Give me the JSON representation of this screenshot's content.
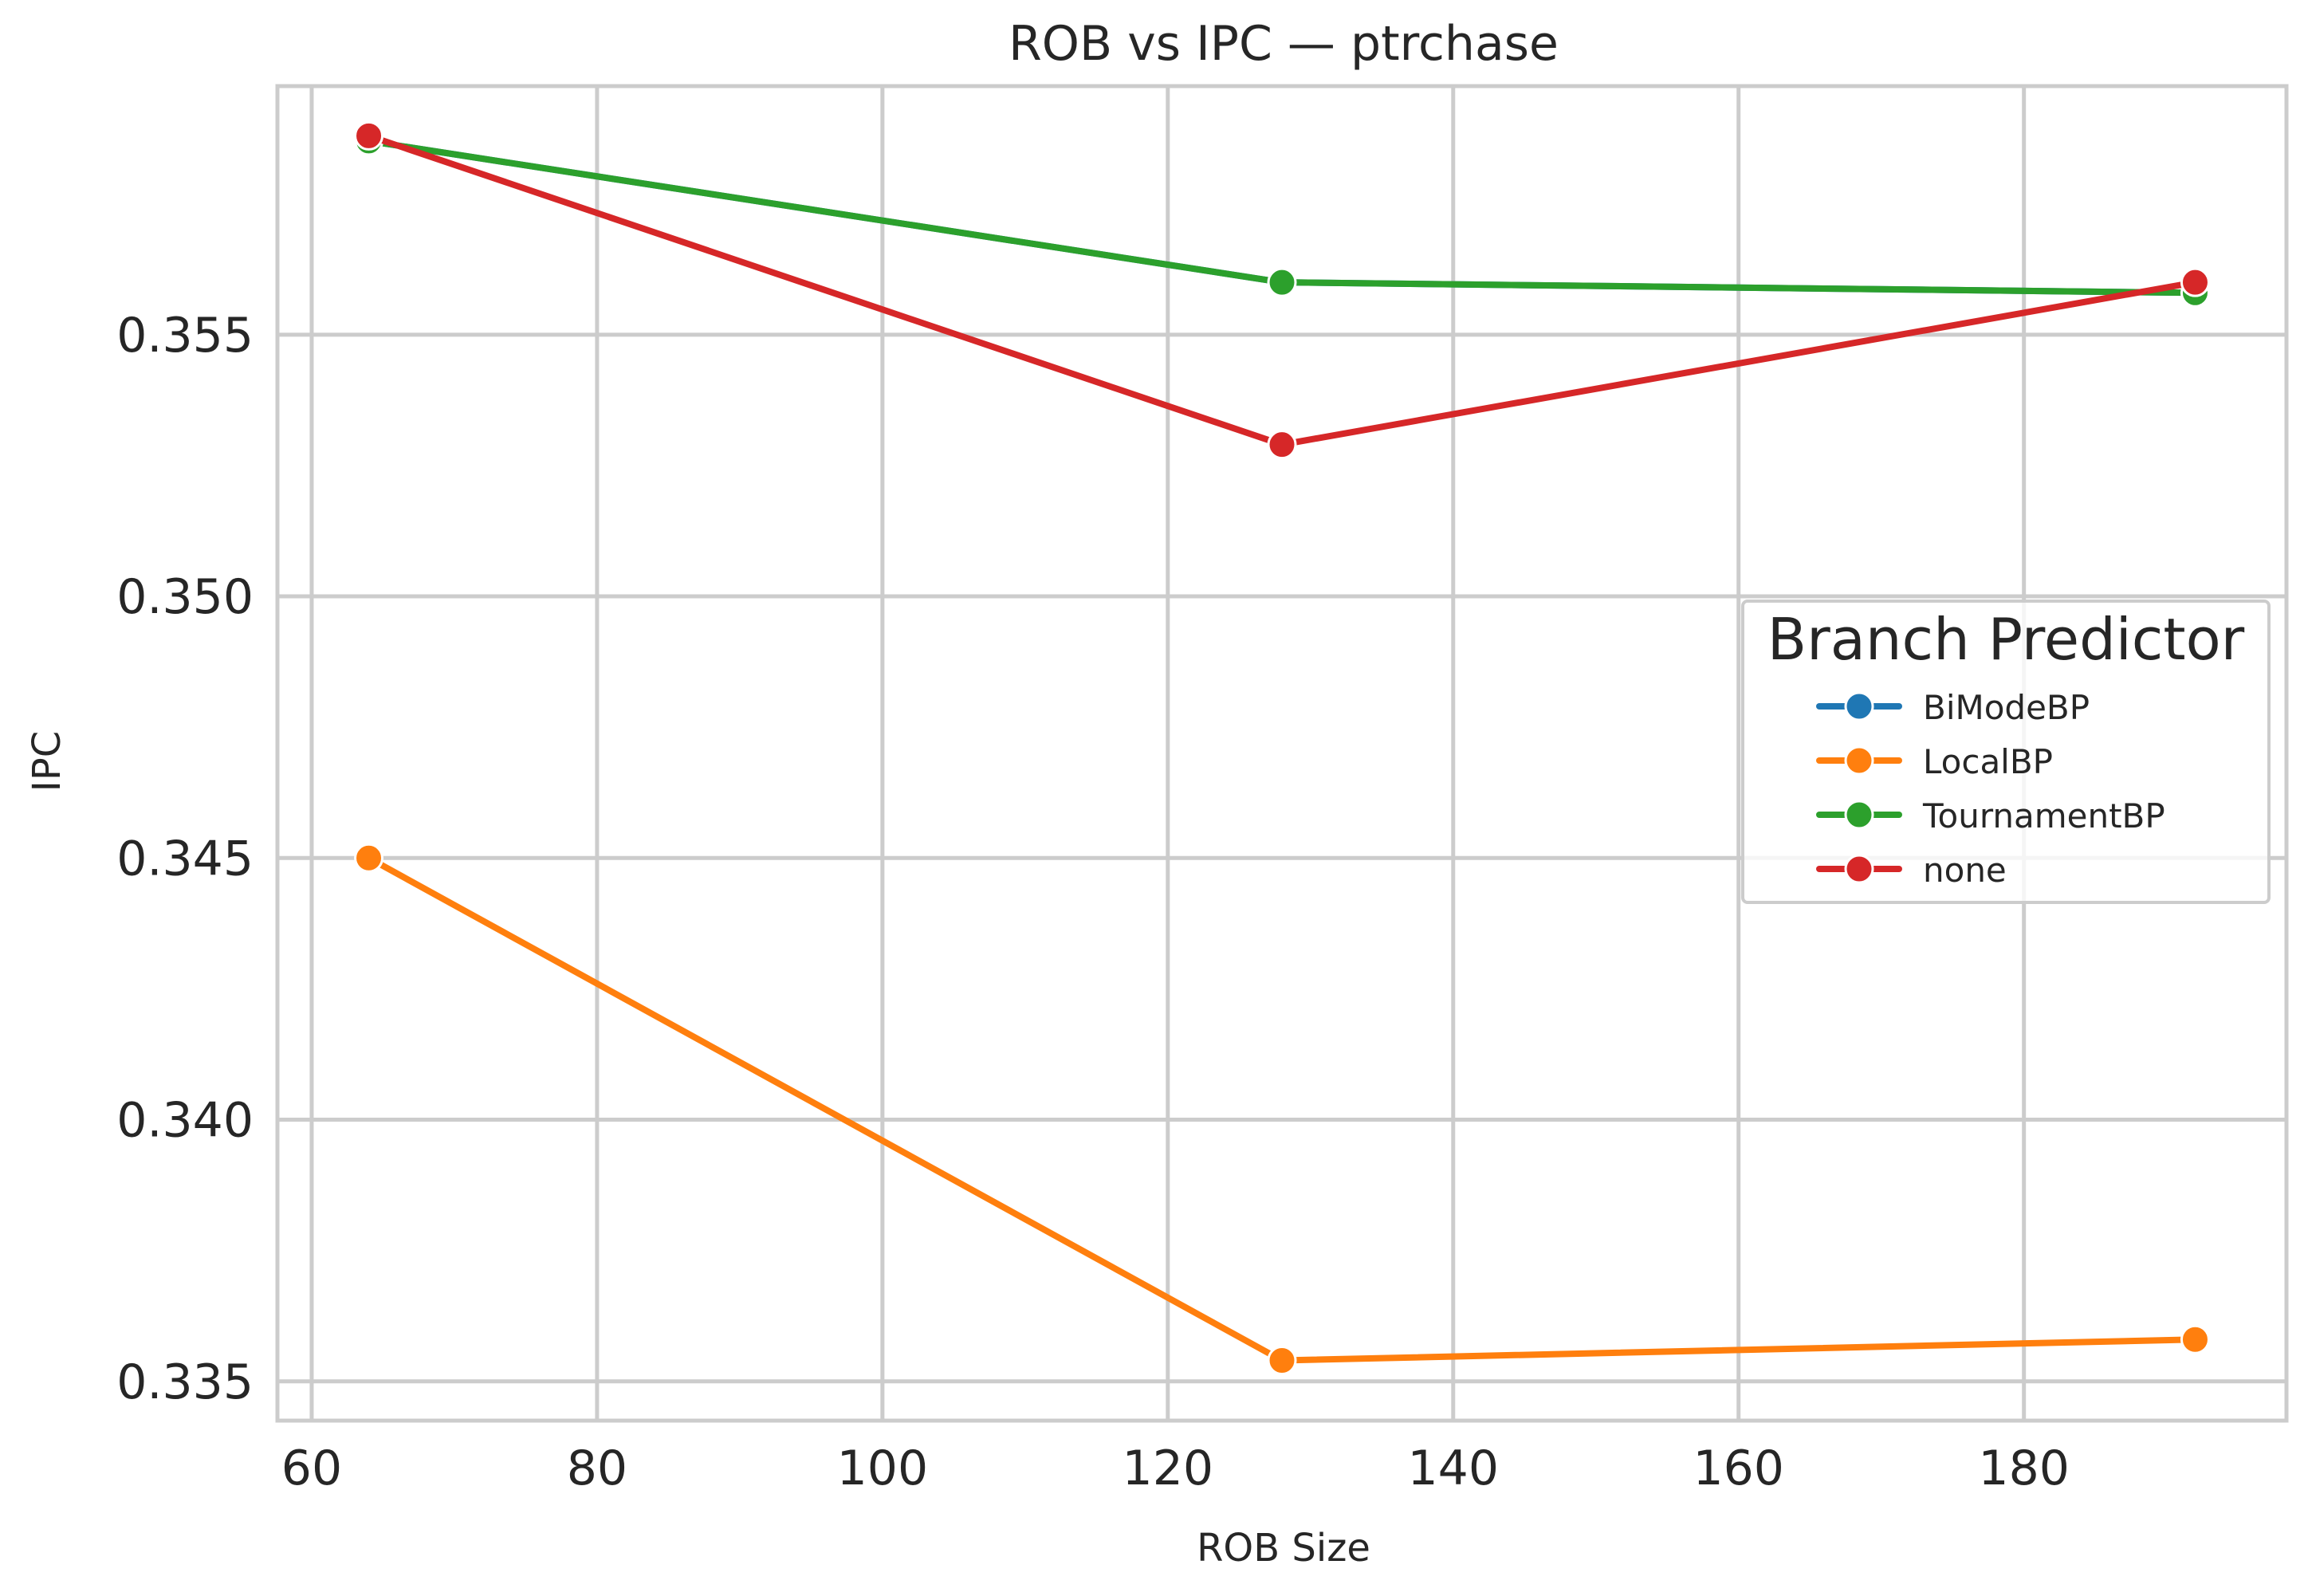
{
  "chart_data": {
    "type": "line",
    "title": "ROB vs IPC — ptrchase",
    "xlabel": "ROB Size",
    "ylabel": "IPC",
    "x": [
      64,
      128,
      192
    ],
    "xlim": [
      57.6,
      198.4
    ],
    "ylim": [
      0.33425,
      0.35975
    ],
    "xticks": [
      60,
      80,
      100,
      120,
      140,
      160,
      180
    ],
    "yticks": [
      0.335,
      0.34,
      0.345,
      0.35,
      0.355
    ],
    "xtick_labels": [
      "60",
      "80",
      "100",
      "120",
      "140",
      "160",
      "180"
    ],
    "ytick_labels": [
      "0.335",
      "0.340",
      "0.345",
      "0.350",
      "0.355"
    ],
    "grid": true,
    "legend": {
      "title": "Branch Predictor",
      "placement": "center-right"
    },
    "series": [
      {
        "name": "BiModeBP",
        "color": "#1f77b4",
        "values": [
          0.3587,
          0.356,
          0.3558
        ]
      },
      {
        "name": "LocalBP",
        "color": "#ff7f0e",
        "values": [
          0.345,
          0.3354,
          0.3358
        ]
      },
      {
        "name": "TournamentBP",
        "color": "#2ca02c",
        "values": [
          0.3587,
          0.356,
          0.3558
        ]
      },
      {
        "name": "none",
        "color": "#d62728",
        "values": [
          0.3588,
          0.3529,
          0.356
        ]
      }
    ]
  }
}
